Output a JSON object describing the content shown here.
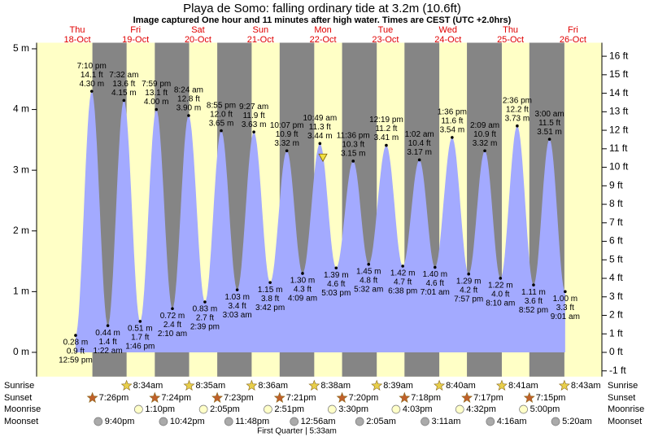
{
  "chart_data": {
    "type": "area",
    "title": "Playa de Somo: falling  ordinary tide at 3.2m (10.6ft)",
    "subtitle": "Image captured One hour and 11 minutes after high water. Times are CEST (UTC +2.0hrs)",
    "ylim": [
      -0.4,
      5.1
    ],
    "yticks": [
      {
        "value": 0,
        "label": "0 m"
      },
      {
        "value": 1,
        "label": "1 m"
      },
      {
        "value": 2,
        "label": "2 m"
      },
      {
        "value": 3,
        "label": "3 m"
      },
      {
        "value": 4,
        "label": "4 m"
      },
      {
        "value": 5,
        "label": "5 m"
      }
    ],
    "y2lim": [
      -1.31,
      16.73
    ],
    "y2ticks": [
      {
        "value": -1,
        "label": "-1 ft"
      },
      {
        "value": 0,
        "label": "0 ft"
      },
      {
        "value": 1,
        "label": "1 ft"
      },
      {
        "value": 2,
        "label": "2 ft"
      },
      {
        "value": 3,
        "label": "3 ft"
      },
      {
        "value": 4,
        "label": "4 ft"
      },
      {
        "value": 5,
        "label": "5 ft"
      },
      {
        "value": 6,
        "label": "6 ft"
      },
      {
        "value": 7,
        "label": "7 ft"
      },
      {
        "value": 8,
        "label": "8 ft"
      },
      {
        "value": 9,
        "label": "9 ft"
      },
      {
        "value": 10,
        "label": "10 ft"
      },
      {
        "value": 11,
        "label": "11 ft"
      },
      {
        "value": 12,
        "label": "12 ft"
      },
      {
        "value": 13,
        "label": "13 ft"
      },
      {
        "value": 14,
        "label": "14 ft"
      },
      {
        "value": 15,
        "label": "15 ft"
      },
      {
        "value": 16,
        "label": "16 ft"
      }
    ],
    "color": "#a3aaff",
    "current_height_m": 3.2,
    "tides": [
      {
        "time": "12:59 pm",
        "m": 0.28,
        "m_label": "0.28 m",
        "ft": 0.9,
        "ft_label": "0.9 ft"
      },
      {
        "time": "7:10 pm",
        "m": 4.3,
        "m_label": "4.30 m",
        "ft": 14.1,
        "ft_label": "14.1 ft"
      },
      {
        "time": "1:22 am",
        "m": 0.44,
        "m_label": "0.44 m",
        "ft": 1.4,
        "ft_label": "1.4 ft"
      },
      {
        "time": "7:32 am",
        "m": 4.15,
        "m_label": "4.15 m",
        "ft": 13.6,
        "ft_label": "13.6 ft"
      },
      {
        "time": "1:46 pm",
        "m": 0.51,
        "m_label": "0.51 m",
        "ft": 1.7,
        "ft_label": "1.7 ft"
      },
      {
        "time": "7:59 pm",
        "m": 4.0,
        "m_label": "4.00 m",
        "ft": 13.1,
        "ft_label": "13.1 ft"
      },
      {
        "time": "2:10 am",
        "m": 0.72,
        "m_label": "0.72 m",
        "ft": 2.4,
        "ft_label": "2.4 ft"
      },
      {
        "time": "8:24 am",
        "m": 3.9,
        "m_label": "3.90 m",
        "ft": 12.8,
        "ft_label": "12.8 ft"
      },
      {
        "time": "2:39 pm",
        "m": 0.83,
        "m_label": "0.83 m",
        "ft": 2.7,
        "ft_label": "2.7 ft"
      },
      {
        "time": "8:55 pm",
        "m": 3.65,
        "m_label": "3.65 m",
        "ft": 12.0,
        "ft_label": "12.0 ft"
      },
      {
        "time": "3:03 am",
        "m": 1.03,
        "m_label": "1.03 m",
        "ft": 3.4,
        "ft_label": "3.4 ft"
      },
      {
        "time": "9:27 am",
        "m": 3.63,
        "m_label": "3.63 m",
        "ft": 11.9,
        "ft_label": "11.9 ft"
      },
      {
        "time": "3:42 pm",
        "m": 1.15,
        "m_label": "1.15 m",
        "ft": 3.8,
        "ft_label": "3.8 ft"
      },
      {
        "time": "10:07 pm",
        "m": 3.32,
        "m_label": "3.32 m",
        "ft": 10.9,
        "ft_label": "10.9 ft"
      },
      {
        "time": "4:09 am",
        "m": 1.3,
        "m_label": "1.30 m",
        "ft": 4.3,
        "ft_label": "4.3 ft"
      },
      {
        "time": "10:49 am",
        "m": 3.44,
        "m_label": "3.44 m",
        "ft": 11.3,
        "ft_label": "11.3 ft"
      },
      {
        "time": "5:03 pm",
        "m": 1.39,
        "m_label": "1.39 m",
        "ft": 4.6,
        "ft_label": "4.6 ft"
      },
      {
        "time": "11:36 pm",
        "m": 3.15,
        "m_label": "3.15 m",
        "ft": 10.3,
        "ft_label": "10.3 ft"
      },
      {
        "time": "5:32 am",
        "m": 1.45,
        "m_label": "1.45 m",
        "ft": 4.8,
        "ft_label": "4.8 ft"
      },
      {
        "time": "12:19 pm",
        "m": 3.41,
        "m_label": "3.41 m",
        "ft": 11.2,
        "ft_label": "11.2 ft"
      },
      {
        "time": "6:38 pm",
        "m": 1.42,
        "m_label": "1.42 m",
        "ft": 4.7,
        "ft_label": "4.7 ft"
      },
      {
        "time": "1:02 am",
        "m": 3.17,
        "m_label": "3.17 m",
        "ft": 10.4,
        "ft_label": "10.4 ft"
      },
      {
        "time": "7:01 am",
        "m": 1.4,
        "m_label": "1.40 m",
        "ft": 4.6,
        "ft_label": "4.6 ft"
      },
      {
        "time": "1:36 pm",
        "m": 3.54,
        "m_label": "3.54 m",
        "ft": 11.6,
        "ft_label": "11.6 ft"
      },
      {
        "time": "7:57 pm",
        "m": 1.29,
        "m_label": "1.29 m",
        "ft": 4.2,
        "ft_label": "4.2 ft"
      },
      {
        "time": "2:09 am",
        "m": 3.32,
        "m_label": "3.32 m",
        "ft": 10.9,
        "ft_label": "10.9 ft"
      },
      {
        "time": "8:10 am",
        "m": 1.22,
        "m_label": "1.22 m",
        "ft": 4.0,
        "ft_label": "4.0 ft"
      },
      {
        "time": "2:36 pm",
        "m": 3.73,
        "m_label": "3.73 m",
        "ft": 12.2,
        "ft_label": "12.2 ft"
      },
      {
        "time": "8:52 pm",
        "m": 1.11,
        "m_label": "1.11 m",
        "ft": 3.6,
        "ft_label": "3.6 ft"
      },
      {
        "time": "3:00 am",
        "m": 3.51,
        "m_label": "3.51 m",
        "ft": 11.5,
        "ft_label": "11.5 ft"
      },
      {
        "time": "9:01 am",
        "m": 1.0,
        "m_label": "1.00 m",
        "ft": 3.3,
        "ft_label": "3.3 ft"
      }
    ],
    "days": [
      {
        "dow": "Thu",
        "date": "18-Oct",
        "sunset": "7:26pm",
        "moonset": "9:40pm"
      },
      {
        "dow": "Fri",
        "date": "19-Oct",
        "sunrise": "8:34am",
        "sunset": "7:24pm",
        "moonrise": "1:10pm",
        "moonset": "10:42pm"
      },
      {
        "dow": "Sat",
        "date": "20-Oct",
        "sunrise": "8:35am",
        "sunset": "7:23pm",
        "moonrise": "2:05pm",
        "moonset": "11:48pm"
      },
      {
        "dow": "Sun",
        "date": "21-Oct",
        "sunrise": "8:36am",
        "sunset": "7:21pm",
        "moonrise": "2:51pm"
      },
      {
        "dow": "Mon",
        "date": "22-Oct",
        "sunrise": "8:38am",
        "sunset": "7:20pm",
        "moonrise": "3:30pm",
        "moonset": "12:56am"
      },
      {
        "dow": "Tue",
        "date": "23-Oct",
        "sunrise": "8:39am",
        "sunset": "7:18pm",
        "moonrise": "4:03pm",
        "moonset": "2:05am"
      },
      {
        "dow": "Wed",
        "date": "24-Oct",
        "sunrise": "8:40am",
        "sunset": "7:17pm",
        "moonrise": "4:32pm",
        "moonset": "3:11am"
      },
      {
        "dow": "Thu",
        "date": "25-Oct",
        "sunrise": "8:41am",
        "sunset": "7:15pm",
        "moonrise": "5:00pm",
        "moonset": "4:16am"
      },
      {
        "dow": "Fri",
        "date": "26-Oct",
        "sunrise": "8:43am",
        "moonset": "5:20am"
      }
    ],
    "row_labels": {
      "sunrise": "Sunrise",
      "sunset": "Sunset",
      "moonrise": "Moonrise",
      "moonset": "Moonset"
    },
    "moon_phase": "First Quarter | 5:33am"
  }
}
